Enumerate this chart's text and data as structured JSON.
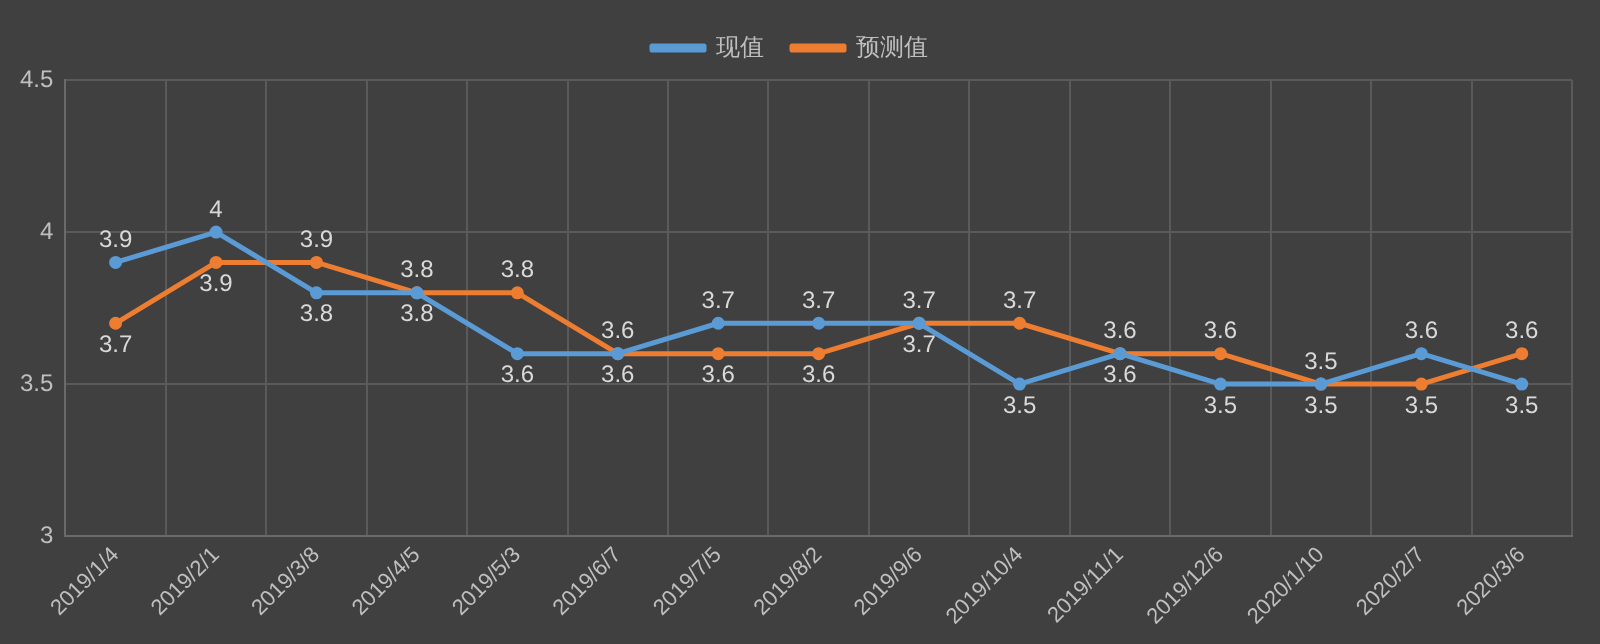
{
  "chart_data": {
    "type": "line",
    "categories": [
      "2019/1/4",
      "2019/2/1",
      "2019/3/8",
      "2019/4/5",
      "2019/5/3",
      "2019/6/7",
      "2019/7/5",
      "2019/8/2",
      "2019/9/6",
      "2019/10/4",
      "2019/11/1",
      "2019/12/6",
      "2020/1/10",
      "2020/2/7",
      "2020/3/6"
    ],
    "series": [
      {
        "name": "现值",
        "color": "#5b9bd5",
        "values": [
          3.9,
          4.0,
          3.8,
          3.8,
          3.6,
          3.6,
          3.7,
          3.7,
          3.7,
          3.5,
          3.6,
          3.5,
          3.5,
          3.6,
          3.5
        ]
      },
      {
        "name": "预测值",
        "color": "#ed7d31",
        "values": [
          3.7,
          3.9,
          3.9,
          3.8,
          3.8,
          3.6,
          3.6,
          3.6,
          3.7,
          3.7,
          3.6,
          3.6,
          3.5,
          3.5,
          3.6
        ]
      }
    ],
    "ylim": [
      3,
      4.5
    ],
    "yticks": [
      3,
      3.5,
      4,
      4.5
    ],
    "grid": true,
    "legend": "top",
    "marker": "circle",
    "line_style": "solid",
    "data_labels": true
  }
}
